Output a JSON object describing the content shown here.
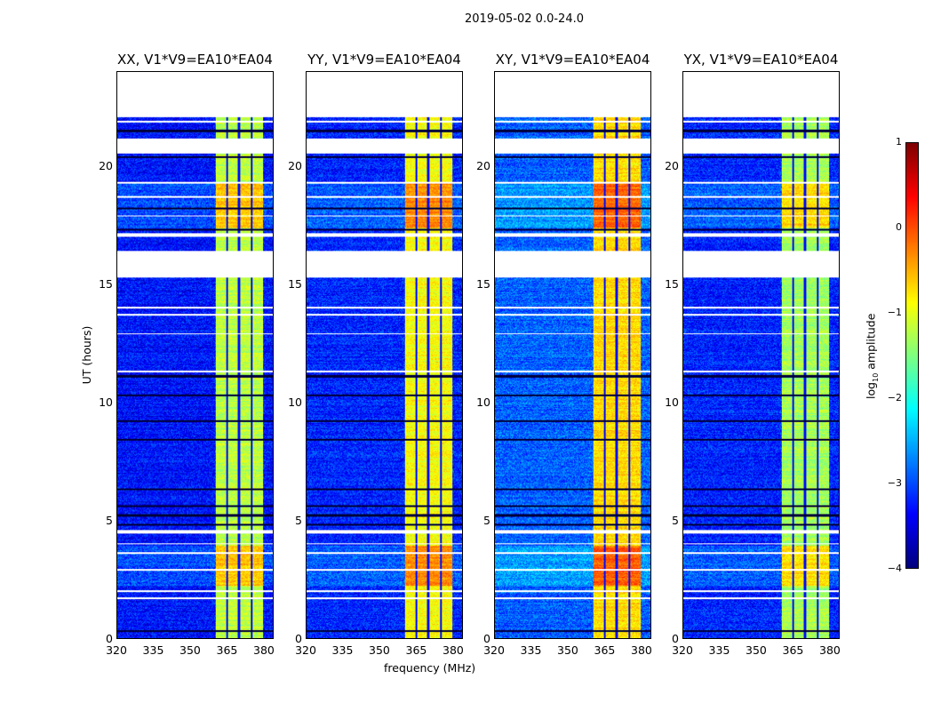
{
  "chart_data": {
    "type": "heatmap",
    "title": "2019-05-02 0.0-24.0",
    "xlabel": "frequency (MHz)",
    "ylabel": "UT (hours)",
    "xlim": [
      320,
      384
    ],
    "ylim": [
      0,
      24
    ],
    "xticks": [
      "320",
      "335",
      "350",
      "365",
      "380"
    ],
    "xtick_values": [
      320,
      335,
      350,
      365,
      380
    ],
    "yticks": [
      "0",
      "5",
      "10",
      "15",
      "20"
    ],
    "ytick_values": [
      0,
      5,
      10,
      15,
      20
    ],
    "panels": [
      {
        "title": "XX, V1*V9=EA10*EA04",
        "background_log_amp": -3.3,
        "band_log_amp": -1.2
      },
      {
        "title": "YY, V1*V9=EA10*EA04",
        "background_log_amp": -3.2,
        "band_log_amp": -0.9
      },
      {
        "title": "XY, V1*V9=EA10*EA04",
        "background_log_amp": -2.9,
        "band_log_amp": -0.7
      },
      {
        "title": "YX, V1*V9=EA10*EA04",
        "background_log_amp": -3.2,
        "band_log_amp": -1.3
      }
    ],
    "rfi_band_mhz": [
      360.5,
      380
    ],
    "band_dropout_channels_mhz": [
      365.2,
      370.2,
      375.3
    ],
    "blank_intervals_hours": [
      [
        22.1,
        24
      ],
      [
        20.55,
        21.2
      ],
      [
        15.3,
        16.4
      ],
      [
        17.0,
        17.15
      ],
      [
        11.25,
        11.35
      ],
      [
        4.45,
        4.6
      ]
    ],
    "dark_rows_hours": [
      0.3,
      4.8,
      5.2,
      5.6,
      6.3,
      8.4,
      9.2,
      10.3,
      11.1,
      17.3,
      18.2,
      20.4,
      21.5
    ],
    "white_rows_hours": [
      1.7,
      2.0,
      2.9,
      3.6,
      4.0,
      12.9,
      13.7,
      14.0,
      17.9,
      18.7,
      19.3,
      21.9
    ],
    "elevated_interval_hours": [
      [
        17.4,
        19.3
      ],
      [
        2.2,
        3.9
      ]
    ],
    "elevated_boost_log_amp": 0.6,
    "colorbar": {
      "label_prefix": "log",
      "label_sub": "10",
      "label_suffix": " amplitude",
      "range": [
        -4,
        1
      ],
      "ticks": [
        "1",
        "0",
        "−1",
        "−2",
        "−3",
        "−4"
      ],
      "tick_values": [
        1,
        0,
        -1,
        -2,
        -3,
        -4
      ],
      "colormap": "jet"
    }
  }
}
